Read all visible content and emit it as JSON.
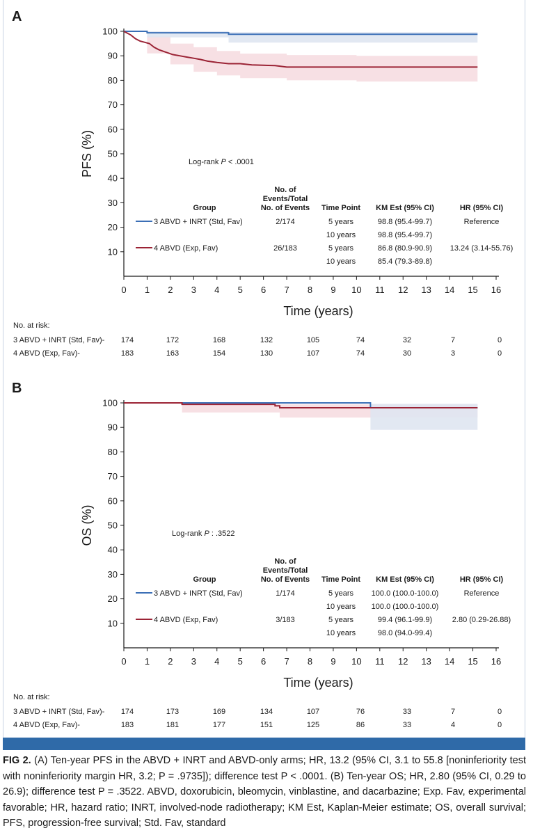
{
  "colors": {
    "std_fav": "#3b6fb6",
    "exp_fav": "#9b2335",
    "std_fav_band": "#dfe6f1",
    "exp_fav_band": "#f6dde1",
    "accent_bar": "#2f6aa8"
  },
  "panels": [
    {
      "letter": "A",
      "ylabel": "PFS (%)",
      "xlabel": "Time (years)",
      "logrank": "Log-rank P < .0001",
      "at_risk_title": "No. at risk:",
      "table_headers": {
        "group": "Group",
        "events": "No. of Events/Total No. of Events",
        "timepoint": "Time Point",
        "km": "KM Est (95% CI)",
        "hr": "HR (95% CI)"
      },
      "rows": [
        {
          "group": "3 ABVD + INRT (Std, Fav)",
          "events": "2/174",
          "tp1": "5 years",
          "km1": "98.8 (95.4-99.7)",
          "tp2": "10 years",
          "km2": "98.8 (95.4-99.7)",
          "hr": "Reference"
        },
        {
          "group": "4 ABVD (Exp, Fav)",
          "events": "26/183",
          "tp1": "5 years",
          "km1": "86.8 (80.9-90.9)",
          "tp2": "10 years",
          "km2": "85.4 (79.3-89.8)",
          "hr": "13.24 (3.14-55.76)"
        }
      ],
      "at_risk": [
        {
          "label": "3 ABVD + INRT (Std, Fav)-",
          "values": [
            174,
            172,
            168,
            132,
            105,
            74,
            32,
            7,
            0
          ]
        },
        {
          "label": "4 ABVD (Exp, Fav)-",
          "values": [
            183,
            163,
            154,
            130,
            107,
            74,
            30,
            3,
            0
          ]
        }
      ]
    },
    {
      "letter": "B",
      "ylabel": "OS (%)",
      "xlabel": "Time (years)",
      "logrank": "Log-rank P : .3522",
      "at_risk_title": "No. at risk:",
      "table_headers": {
        "group": "Group",
        "events": "No. of Events/Total No. of Events",
        "timepoint": "Time Point",
        "km": "KM Est (95% CI)",
        "hr": "HR (95% CI)"
      },
      "rows": [
        {
          "group": "3 ABVD + INRT (Std, Fav)",
          "events": "1/174",
          "tp1": "5 years",
          "km1": "100.0 (100.0-100.0)",
          "tp2": "10 years",
          "km2": "100.0 (100.0-100.0)",
          "hr": "Reference"
        },
        {
          "group": "4 ABVD (Exp, Fav)",
          "events": "3/183",
          "tp1": "5 years",
          "km1": "99.4 (96.1-99.9)",
          "tp2": "10 years",
          "km2": "98.0 (94.0-99.4)",
          "hr": "2.80 (0.29-26.88)"
        }
      ],
      "at_risk": [
        {
          "label": "3 ABVD + INRT (Std, Fav)-",
          "values": [
            174,
            173,
            169,
            134,
            107,
            76,
            33,
            7,
            0
          ]
        },
        {
          "label": "4 ABVD (Exp, Fav)-",
          "values": [
            183,
            181,
            177,
            151,
            125,
            86,
            33,
            4,
            0
          ]
        }
      ]
    }
  ],
  "chart_data": [
    {
      "type": "line",
      "panel": "A",
      "ylabel": "PFS (%)",
      "xlabel": "Time (years)",
      "xlim": [
        0,
        16
      ],
      "ylim": [
        0,
        100
      ],
      "xticks": [
        0,
        1,
        2,
        3,
        4,
        5,
        6,
        7,
        8,
        9,
        10,
        11,
        12,
        13,
        14,
        15,
        16
      ],
      "yticks": [
        10,
        20,
        30,
        40,
        50,
        60,
        70,
        80,
        90,
        100
      ],
      "series": [
        {
          "name": "3 ABVD + INRT (Std, Fav)",
          "x": [
            0,
            1.0,
            1.0,
            4.5,
            4.5,
            15.2
          ],
          "y": [
            100,
            100,
            99.4,
            99.4,
            98.8,
            98.8
          ],
          "ci_x": [
            0,
            1,
            4.5,
            15.2
          ],
          "ci_lower": [
            100,
            97.5,
            95.4,
            95.4
          ],
          "ci_upper": [
            100,
            100,
            99.7,
            99.7
          ]
        },
        {
          "name": "4 ABVD (Exp, Fav)",
          "x": [
            0,
            0.3,
            0.5,
            0.7,
            0.9,
            1.1,
            1.3,
            1.5,
            1.8,
            2.1,
            2.4,
            2.7,
            3.0,
            3.3,
            3.6,
            4.0,
            4.5,
            5.0,
            5.5,
            6.5,
            7.0,
            15.2
          ],
          "y": [
            100,
            98.5,
            97,
            96,
            95.5,
            95,
            93.5,
            92.5,
            91.5,
            90.5,
            90,
            89.5,
            89,
            88.5,
            87.8,
            87.3,
            86.8,
            86.8,
            86.3,
            86.0,
            85.4,
            85.4
          ],
          "ci_x": [
            0,
            1,
            2,
            3,
            4,
            5,
            7,
            10,
            15.2
          ],
          "ci_lower": [
            100,
            91,
            86.5,
            83.5,
            82,
            80.9,
            80,
            79.5,
            79.3
          ],
          "ci_upper": [
            100,
            98,
            95,
            93.5,
            92,
            90.9,
            90.3,
            90,
            89.8
          ]
        }
      ]
    },
    {
      "type": "line",
      "panel": "B",
      "ylabel": "OS (%)",
      "xlabel": "Time (years)",
      "xlim": [
        0,
        16
      ],
      "ylim": [
        0,
        100
      ],
      "xticks": [
        0,
        1,
        2,
        3,
        4,
        5,
        6,
        7,
        8,
        9,
        10,
        11,
        12,
        13,
        14,
        15,
        16
      ],
      "yticks": [
        10,
        20,
        30,
        40,
        50,
        60,
        70,
        80,
        90,
        100
      ],
      "series": [
        {
          "name": "3 ABVD + INRT (Std, Fav)",
          "x": [
            0,
            10.6,
            10.6,
            15.2
          ],
          "y": [
            100,
            100,
            98.0,
            98.0
          ],
          "ci_x": [
            0,
            10.6,
            10.6,
            15.2
          ],
          "ci_lower": [
            100,
            100,
            89,
            89
          ],
          "ci_upper": [
            100,
            100,
            99.6,
            99.6
          ]
        },
        {
          "name": "4 ABVD (Exp, Fav)",
          "x": [
            0,
            2.5,
            2.5,
            6.5,
            6.5,
            6.7,
            6.7,
            15.2
          ],
          "y": [
            100,
            100,
            99.4,
            99.4,
            98.8,
            98.8,
            98.0,
            98.0
          ],
          "ci_x": [
            0,
            2.5,
            5,
            6.7,
            15.2
          ],
          "ci_lower": [
            100,
            96.1,
            96.1,
            94.0,
            94.0
          ],
          "ci_upper": [
            100,
            99.9,
            99.9,
            99.4,
            99.4
          ]
        }
      ]
    }
  ],
  "caption": {
    "label": "FIG 2.",
    "text": " (A) Ten-year PFS in the ABVD + INRT and ABVD-only arms; HR, 13.2 (95% CI, 3.1 to 55.8 [noninferiority test with noninferiority margin HR, 3.2; P = .9735]); difference test P < .0001. (B) Ten-year OS; HR, 2.80 (95% CI, 0.29 to 26.9); difference test P = .3522. ABVD, doxorubicin, bleomycin, vinblastine, and dacarbazine; Exp. Fav, experimental favorable; HR, hazard ratio; INRT, involved-node radiotherapy; KM Est, Kaplan-Meier estimate; OS, overall survival; PFS, progression-free survival; Std. Fav, standard"
  }
}
